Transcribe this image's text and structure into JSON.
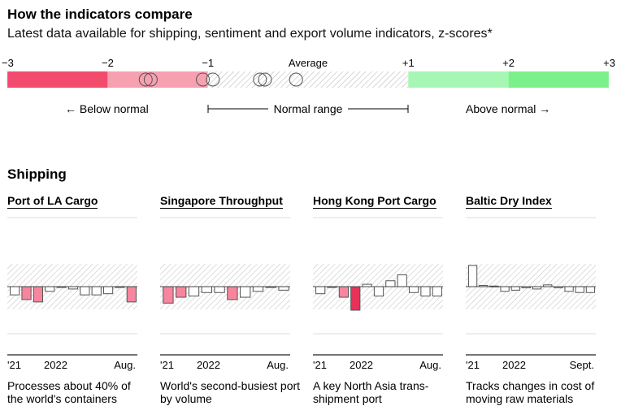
{
  "title": "How the indicators compare",
  "subtitle": "Latest data available for shipping, sentiment and export volume indicators, z-scores*",
  "scale": {
    "ticks": [
      {
        "label": "−3",
        "value": -3
      },
      {
        "label": "−2",
        "value": -2
      },
      {
        "label": "−1",
        "value": -1
      },
      {
        "label": "Average",
        "value": 0
      },
      {
        "label": "+1",
        "value": 1
      },
      {
        "label": "+2",
        "value": 2
      },
      {
        "label": "+3",
        "value": 3
      }
    ],
    "bands": [
      {
        "from": -3,
        "to": -2,
        "color": "#f24b6e"
      },
      {
        "from": -2,
        "to": -1,
        "color": "#f7a0b0"
      },
      {
        "from": -1,
        "to": 1,
        "color": "hatch"
      },
      {
        "from": 1,
        "to": 2,
        "color": "#a6f7b4"
      },
      {
        "from": 2,
        "to": 3,
        "color": "#7cf08a"
      }
    ],
    "indicator_values": [
      -1.62,
      -1.57,
      -1.05,
      -0.95,
      -0.48,
      -0.43,
      -0.12
    ],
    "below_label": "Below normal",
    "normal_label": "Normal range",
    "above_label": "Above normal"
  },
  "section_title": "Shipping",
  "colors": {
    "negative_fill": "#f7859e",
    "strong_negative_fill": "#e8315b",
    "neutral_fill": "#ffffff",
    "bar_stroke": "#555555"
  },
  "chart_data": [
    {
      "type": "bar",
      "title": "Port of LA Cargo",
      "x_labels": [
        "'21",
        "2022",
        "Aug."
      ],
      "values": [
        -0.7,
        -1.1,
        -1.3,
        -0.4,
        0,
        -0.2,
        -0.7,
        -0.7,
        -0.6,
        0,
        -1.3
      ],
      "highlight": [
        "none",
        "neg",
        "neg",
        "none",
        "none",
        "none",
        "none",
        "none",
        "none",
        "none",
        "neg"
      ],
      "ylim": [
        -3,
        3
      ],
      "description": "Processes about 40% of the world's containers"
    },
    {
      "type": "bar",
      "title": "Singapore Throughput",
      "x_labels": [
        "'21",
        "2022",
        "Aug."
      ],
      "values": [
        -1.4,
        -0.9,
        -0.8,
        -0.5,
        -0.5,
        -1.1,
        -0.9,
        -0.4,
        0,
        -0.3
      ],
      "highlight": [
        "neg",
        "neg",
        "none",
        "none",
        "none",
        "neg",
        "none",
        "none",
        "none",
        "none"
      ],
      "ylim": [
        -3,
        3
      ],
      "description": "World's second-busiest port by volume"
    },
    {
      "type": "bar",
      "title": "Hong Kong Port Cargo",
      "x_labels": [
        "'21",
        "2022",
        "Aug."
      ],
      "values": [
        -0.6,
        0,
        -0.9,
        -2.0,
        0.2,
        -0.8,
        0.5,
        1.0,
        -0.5,
        -0.8,
        -0.8
      ],
      "highlight": [
        "none",
        "none",
        "neg",
        "strong",
        "none",
        "none",
        "none",
        "none",
        "none",
        "none",
        "none"
      ],
      "ylim": [
        -3,
        3
      ],
      "description": "A key North Asia trans-shipment port"
    },
    {
      "type": "bar",
      "title": "Baltic Dry Index",
      "x_labels": [
        "'21",
        "2022",
        "Sept."
      ],
      "values": [
        1.8,
        0.1,
        0.05,
        -0.4,
        -0.3,
        -0.1,
        -0.2,
        0.15,
        -0.1,
        -0.4,
        -0.5,
        -0.5
      ],
      "highlight": [
        "none",
        "none",
        "none",
        "none",
        "none",
        "none",
        "none",
        "none",
        "none",
        "none",
        "none",
        "none"
      ],
      "ylim": [
        -3,
        3
      ],
      "description": "Tracks changes in cost of moving raw materials"
    }
  ]
}
